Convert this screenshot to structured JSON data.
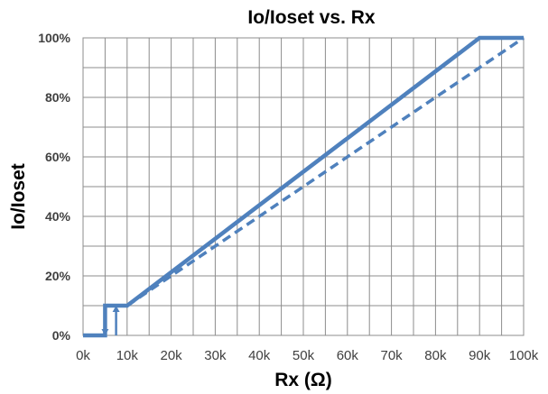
{
  "chart_data": {
    "type": "line",
    "title": "Io/Ioset vs. Rx",
    "xlabel": "Rx (Ω)",
    "ylabel": "Io/Ioset",
    "xlim": [
      0,
      100
    ],
    "ylim": [
      0,
      100
    ],
    "x_ticks": [
      "0k",
      "10k",
      "20k",
      "30k",
      "40k",
      "50k",
      "60k",
      "70k",
      "80k",
      "90k",
      "100k"
    ],
    "y_ticks": [
      "0%",
      "20%",
      "40%",
      "60%",
      "80%",
      "100%"
    ],
    "grid": true,
    "series": [
      {
        "style": "solid",
        "color": "#4f81bd",
        "x": [
          0,
          5,
          5,
          10,
          90,
          100
        ],
        "y": [
          0,
          0,
          10,
          10,
          100,
          100
        ]
      },
      {
        "style": "dashed",
        "color": "#4f81bd",
        "x": [
          10,
          100
        ],
        "y": [
          10,
          100
        ]
      }
    ],
    "annotations": [
      {
        "type": "arrow",
        "direction": "down",
        "x": 5,
        "y_from": 10,
        "y_to": 0
      },
      {
        "type": "arrow",
        "direction": "up",
        "x": 7.5,
        "y_from": 0,
        "y_to": 10
      }
    ]
  }
}
